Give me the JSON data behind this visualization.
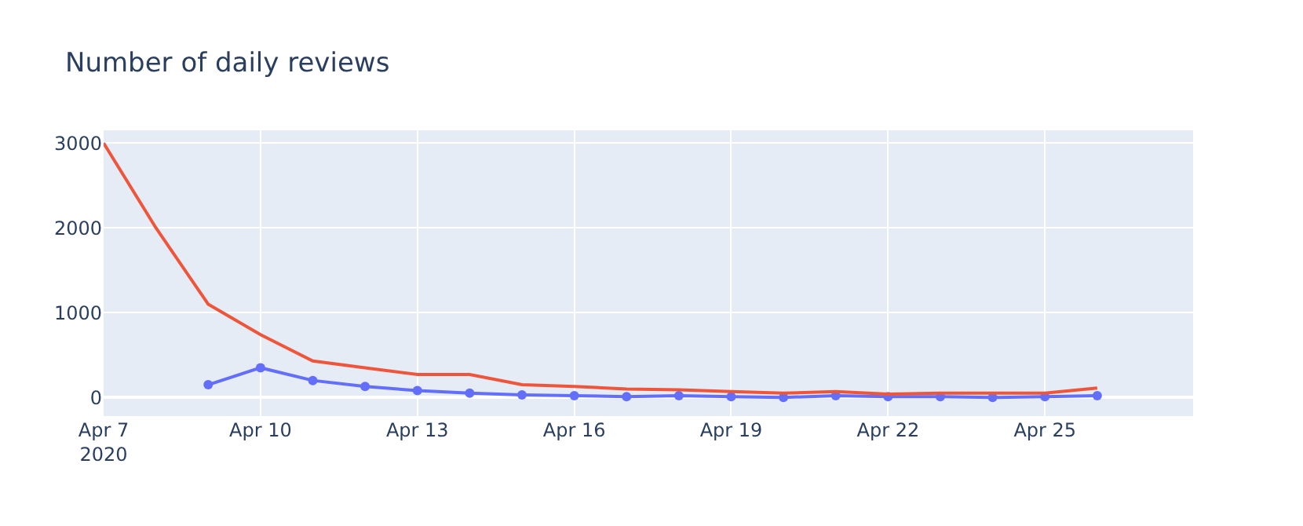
{
  "chart_data": {
    "type": "line",
    "title": "Number of daily reviews",
    "xlim": [
      "2020-04-07",
      "2020-04-27T20:00"
    ],
    "xticks": [
      {
        "value": "2020-04-07",
        "label": "Apr 7\n2020"
      },
      {
        "value": "2020-04-10",
        "label": "Apr 10"
      },
      {
        "value": "2020-04-13",
        "label": "Apr 13"
      },
      {
        "value": "2020-04-16",
        "label": "Apr 16"
      },
      {
        "value": "2020-04-19",
        "label": "Apr 19"
      },
      {
        "value": "2020-04-22",
        "label": "Apr 22"
      },
      {
        "value": "2020-04-25",
        "label": "Apr 25"
      }
    ],
    "ylim": [
      -220,
      3150
    ],
    "yticks": [
      0,
      1000,
      2000,
      3000
    ],
    "grid": true,
    "series": [
      {
        "color": "#636efa",
        "marker": "circle",
        "x": [
          "2020-04-09",
          "2020-04-10",
          "2020-04-11",
          "2020-04-12",
          "2020-04-13",
          "2020-04-14",
          "2020-04-15",
          "2020-04-16",
          "2020-04-17",
          "2020-04-18",
          "2020-04-19",
          "2020-04-20",
          "2020-04-21",
          "2020-04-22",
          "2020-04-23",
          "2020-04-24",
          "2020-04-25",
          "2020-04-26"
        ],
        "values": [
          150,
          350,
          200,
          130,
          80,
          50,
          30,
          20,
          10,
          20,
          10,
          0,
          20,
          10,
          10,
          0,
          10,
          20
        ]
      },
      {
        "color": "#ef553b",
        "marker": "none",
        "x": [
          "2020-04-07",
          "2020-04-08",
          "2020-04-09",
          "2020-04-10",
          "2020-04-11",
          "2020-04-12",
          "2020-04-13",
          "2020-04-14",
          "2020-04-15",
          "2020-04-16",
          "2020-04-17",
          "2020-04-18",
          "2020-04-19",
          "2020-04-20",
          "2020-04-21",
          "2020-04-22",
          "2020-04-23",
          "2020-04-24",
          "2020-04-25",
          "2020-04-26"
        ],
        "values": [
          3000,
          2000,
          1100,
          740,
          430,
          350,
          270,
          270,
          150,
          130,
          100,
          90,
          70,
          50,
          70,
          40,
          50,
          50,
          50,
          110
        ]
      }
    ]
  }
}
